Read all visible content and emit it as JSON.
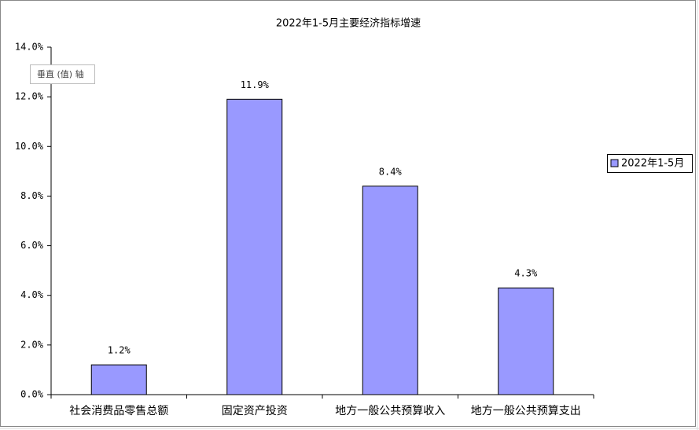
{
  "chart_data": {
    "type": "bar",
    "title": "2022年1-5月主要经济指标增速",
    "categories": [
      "社会消费品零售总额",
      "固定资产投资",
      "地方一般公共预算收入",
      "地方一般公共预算支出"
    ],
    "series": [
      {
        "name": "2022年1-5月",
        "color": "#9999ff",
        "values": [
          1.2,
          11.9,
          8.4,
          4.3
        ],
        "value_labels": [
          "1.2%",
          "11.9%",
          "8.4%",
          "4.3%"
        ]
      }
    ],
    "ylim": [
      0,
      14
    ],
    "yticks": [
      {
        "value": 0,
        "label": "0.0%"
      },
      {
        "value": 2,
        "label": "2.0%"
      },
      {
        "value": 4,
        "label": "4.0%"
      },
      {
        "value": 6,
        "label": "6.0%"
      },
      {
        "value": 8,
        "label": "8.0%"
      },
      {
        "value": 10,
        "label": "10.0%"
      },
      {
        "value": 12,
        "label": "12.0%"
      },
      {
        "value": 14,
        "label": "14.0%"
      }
    ],
    "legend": "right",
    "tooltip": "垂直 (值) 轴"
  }
}
